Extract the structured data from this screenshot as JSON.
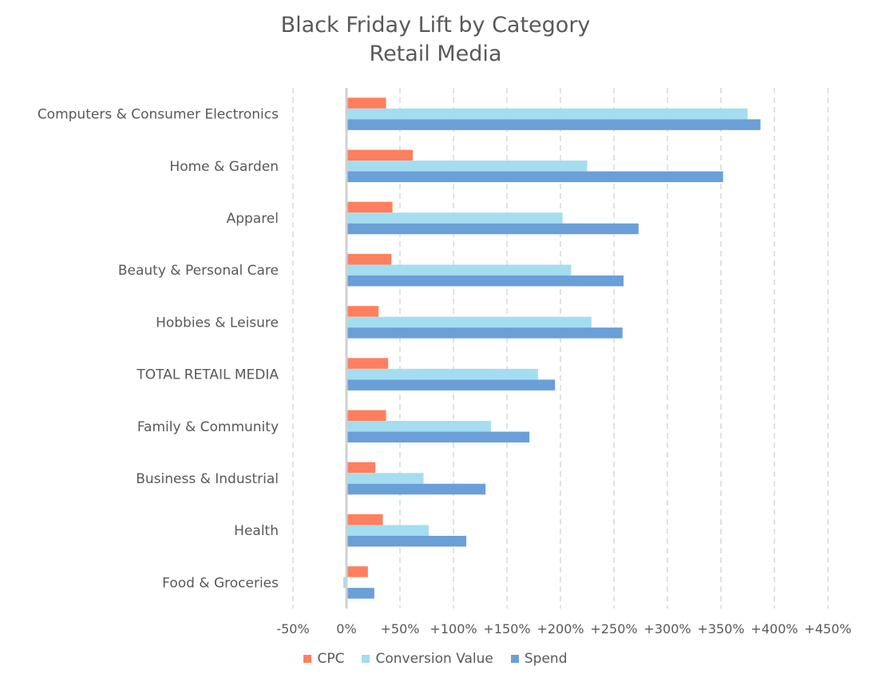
{
  "chart_data": {
    "type": "bar",
    "orientation": "horizontal",
    "title": "Black Friday Lift by Category",
    "subtitle": "Retail Media",
    "categories": [
      "Computers & Consumer Electronics",
      "Home & Garden",
      "Apparel",
      "Beauty & Personal Care",
      "Hobbies & Leisure",
      "TOTAL RETAIL MEDIA",
      "Family & Community",
      "Business & Industrial",
      "Health",
      "Food & Groceries"
    ],
    "series": [
      {
        "name": "CPC",
        "color": "#FF7F5E",
        "values": [
          37,
          62,
          43,
          42,
          30,
          39,
          37,
          27,
          34,
          20
        ]
      },
      {
        "name": "Conversion Value",
        "color": "#A4DDF0",
        "values": [
          375,
          225,
          202,
          210,
          229,
          179,
          135,
          72,
          77,
          -3
        ]
      },
      {
        "name": "Spend",
        "color": "#6A9FD8",
        "values": [
          387,
          352,
          273,
          259,
          258,
          195,
          171,
          130,
          112,
          26
        ]
      }
    ],
    "xlim": [
      -50,
      450
    ],
    "xticks": [
      -50,
      0,
      50,
      100,
      150,
      200,
      250,
      300,
      350,
      400,
      450
    ],
    "xtick_labels": [
      "-50%",
      "0%",
      "+50%",
      "+100%",
      "+150%",
      "+200%",
      "+250%",
      "+300%",
      "+350%",
      "+400%",
      "+450%"
    ],
    "xlabel": "",
    "ylabel": "",
    "grid": "vertical dashed",
    "legend_position": "bottom"
  }
}
